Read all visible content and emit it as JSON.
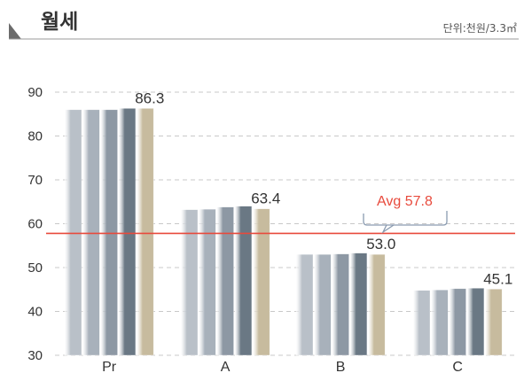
{
  "chart_data": {
    "type": "bar",
    "title": "월세",
    "unit": "단위:천원/3.3㎡",
    "categories": [
      "Pr",
      "A",
      "B",
      "C"
    ],
    "series": [
      {
        "values": [
          86.0,
          63.2,
          53.0,
          44.8
        ]
      },
      {
        "values": [
          86.0,
          63.3,
          53.0,
          44.9
        ]
      },
      {
        "values": [
          86.0,
          63.8,
          53.1,
          45.2
        ]
      },
      {
        "values": [
          86.3,
          64.0,
          53.3,
          45.3
        ]
      },
      {
        "values": [
          86.3,
          63.4,
          53.0,
          45.1
        ]
      }
    ],
    "value_labels": [
      "86.3",
      "63.4",
      "53.0",
      "45.1"
    ],
    "ylim": [
      30,
      90
    ],
    "yticks": [
      30,
      40,
      50,
      60,
      70,
      80,
      90
    ],
    "grid": true,
    "average": {
      "label": "Avg",
      "value": 57.8,
      "value_text": "57.8"
    },
    "colors": {
      "series": [
        "#b9c0c8",
        "#a8b1bb",
        "#8d98a4",
        "#6a7884",
        "#c7bb9e"
      ],
      "average_line": "#e84a3c",
      "average_label": "#e84a3c",
      "grid": "#c8c8c8",
      "header_arrow": "#6b6b6b"
    }
  }
}
